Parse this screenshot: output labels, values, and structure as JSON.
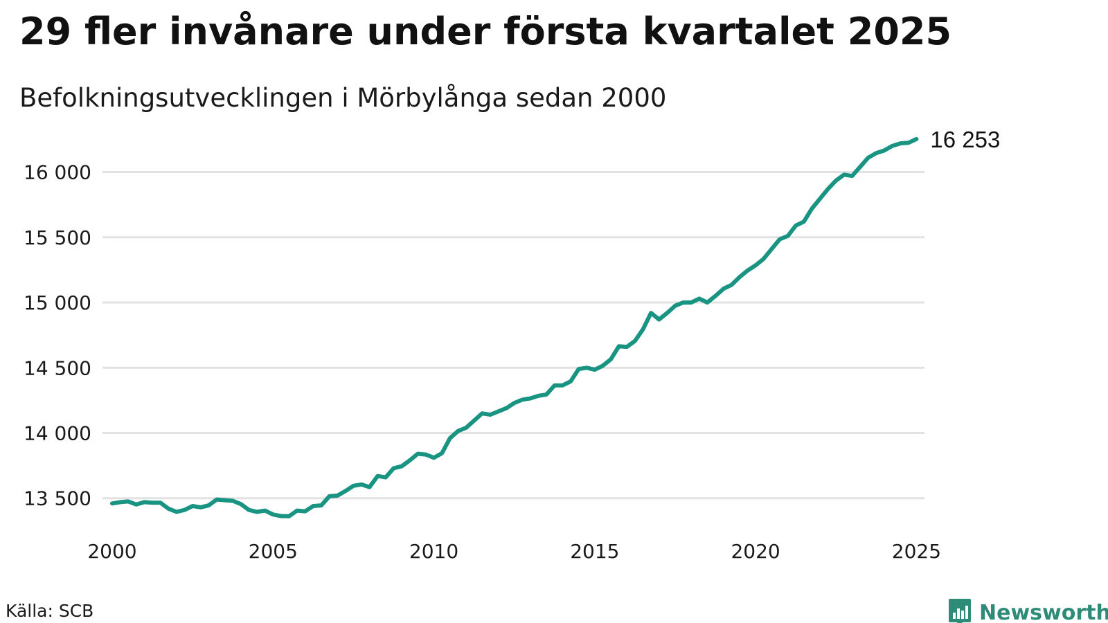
{
  "title": "29 fler invånare under första kvartalet 2025",
  "subtitle": "Befolkningsutvecklingen i Mörbylånga sedan 2000",
  "source": "Källa: SCB",
  "brand": {
    "name": "Newsworthy",
    "icon": "bar-chart-badge-icon",
    "color": "#2e8b78"
  },
  "colors": {
    "line": "#1a9482",
    "grid": "#e2e2e2",
    "text": "#111111"
  },
  "chart_data": {
    "type": "line",
    "title": "29 fler invånare under första kvartalet 2025",
    "subtitle": "Befolkningsutvecklingen i Mörbylånga sedan 2000",
    "xlabel": "",
    "ylabel": "",
    "xlim": [
      2000,
      2025.25
    ],
    "ylim": [
      13350,
      16300
    ],
    "grid": true,
    "legend": "none",
    "x_ticks": [
      2000,
      2005,
      2010,
      2015,
      2020,
      2025
    ],
    "x_tick_labels": [
      "2000",
      "2005",
      "2010",
      "2015",
      "2020",
      "2025"
    ],
    "y_ticks": [
      13500,
      14000,
      14500,
      15000,
      15500,
      16000
    ],
    "y_tick_labels": [
      "13 500",
      "14 000",
      "14 500",
      "15 000",
      "15 500",
      "16 000"
    ],
    "end_label": "16 253",
    "series": [
      {
        "values": [
          [
            2000.0,
            13460
          ],
          [
            2000.25,
            13470
          ],
          [
            2000.5,
            13475
          ],
          [
            2000.75,
            13452
          ],
          [
            2001.0,
            13470
          ],
          [
            2001.25,
            13465
          ],
          [
            2001.5,
            13465
          ],
          [
            2001.75,
            13420
          ],
          [
            2002.0,
            13395
          ],
          [
            2002.25,
            13410
          ],
          [
            2002.5,
            13440
          ],
          [
            2002.75,
            13430
          ],
          [
            2003.0,
            13445
          ],
          [
            2003.25,
            13490
          ],
          [
            2003.5,
            13485
          ],
          [
            2003.75,
            13480
          ],
          [
            2004.0,
            13455
          ],
          [
            2004.25,
            13410
          ],
          [
            2004.5,
            13395
          ],
          [
            2004.75,
            13405
          ],
          [
            2005.0,
            13375
          ],
          [
            2005.25,
            13363
          ],
          [
            2005.5,
            13362
          ],
          [
            2005.75,
            13405
          ],
          [
            2006.0,
            13400
          ],
          [
            2006.25,
            13440
          ],
          [
            2006.5,
            13445
          ],
          [
            2006.75,
            13515
          ],
          [
            2007.0,
            13520
          ],
          [
            2007.25,
            13555
          ],
          [
            2007.5,
            13595
          ],
          [
            2007.75,
            13605
          ],
          [
            2008.0,
            13585
          ],
          [
            2008.25,
            13670
          ],
          [
            2008.5,
            13660
          ],
          [
            2008.75,
            13730
          ],
          [
            2009.0,
            13745
          ],
          [
            2009.25,
            13790
          ],
          [
            2009.5,
            13840
          ],
          [
            2009.75,
            13835
          ],
          [
            2010.0,
            13810
          ],
          [
            2010.25,
            13845
          ],
          [
            2010.5,
            13960
          ],
          [
            2010.75,
            14015
          ],
          [
            2011.0,
            14040
          ],
          [
            2011.25,
            14095
          ],
          [
            2011.5,
            14150
          ],
          [
            2011.75,
            14140
          ],
          [
            2012.0,
            14165
          ],
          [
            2012.25,
            14190
          ],
          [
            2012.5,
            14230
          ],
          [
            2012.75,
            14255
          ],
          [
            2013.0,
            14265
          ],
          [
            2013.25,
            14285
          ],
          [
            2013.5,
            14295
          ],
          [
            2013.75,
            14365
          ],
          [
            2014.0,
            14365
          ],
          [
            2014.25,
            14395
          ],
          [
            2014.5,
            14490
          ],
          [
            2014.75,
            14500
          ],
          [
            2015.0,
            14485
          ],
          [
            2015.25,
            14515
          ],
          [
            2015.5,
            14565
          ],
          [
            2015.75,
            14665
          ],
          [
            2016.0,
            14660
          ],
          [
            2016.25,
            14705
          ],
          [
            2016.5,
            14795
          ],
          [
            2016.75,
            14920
          ],
          [
            2017.0,
            14870
          ],
          [
            2017.25,
            14920
          ],
          [
            2017.5,
            14975
          ],
          [
            2017.75,
            15000
          ],
          [
            2018.0,
            15000
          ],
          [
            2018.25,
            15030
          ],
          [
            2018.5,
            15000
          ],
          [
            2018.75,
            15050
          ],
          [
            2019.0,
            15105
          ],
          [
            2019.25,
            15135
          ],
          [
            2019.5,
            15195
          ],
          [
            2019.75,
            15245
          ],
          [
            2020.0,
            15285
          ],
          [
            2020.25,
            15335
          ],
          [
            2020.5,
            15410
          ],
          [
            2020.75,
            15485
          ],
          [
            2021.0,
            15510
          ],
          [
            2021.25,
            15590
          ],
          [
            2021.5,
            15620
          ],
          [
            2021.75,
            15720
          ],
          [
            2022.0,
            15795
          ],
          [
            2022.25,
            15870
          ],
          [
            2022.5,
            15935
          ],
          [
            2022.75,
            15980
          ],
          [
            2023.0,
            15970
          ],
          [
            2023.25,
            16040
          ],
          [
            2023.5,
            16110
          ],
          [
            2023.75,
            16145
          ],
          [
            2024.0,
            16165
          ],
          [
            2024.25,
            16200
          ],
          [
            2024.5,
            16220
          ],
          [
            2024.75,
            16224
          ],
          [
            2025.0,
            16253
          ]
        ]
      }
    ]
  }
}
